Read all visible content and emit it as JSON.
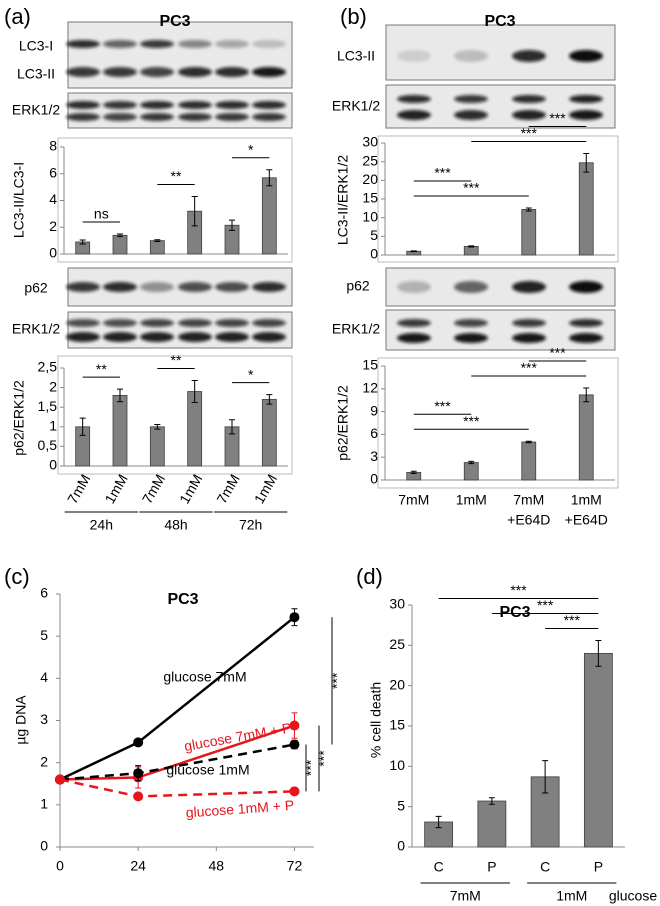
{
  "figure": {
    "panel_labels": [
      "(a)",
      "(b)",
      "(c)",
      "(d)"
    ],
    "blot_labels": {
      "a": [
        "LC3-I",
        "LC3-II",
        "ERK1/2",
        "p62",
        "ERK1/2"
      ],
      "b": [
        "LC3-II",
        "ERK1/2",
        "p62",
        "ERK1/2"
      ]
    }
  },
  "chart_data": [
    {
      "type": "bar",
      "title": "PC3",
      "y_label": "LC3-II/LC3-I",
      "color": "#808080",
      "values": [
        0.9,
        1.4,
        1.0,
        3.2,
        2.15,
        5.7
      ],
      "errors": [
        0.15,
        0.1,
        0.07,
        1.1,
        0.38,
        0.6
      ],
      "ylim": [
        0,
        8
      ],
      "yticks": [
        0,
        2,
        4,
        6,
        8
      ],
      "annotations": [
        {
          "text": "ns",
          "between": [
            0,
            1
          ]
        },
        {
          "text": "**",
          "between": [
            2,
            3
          ]
        },
        {
          "text": "*",
          "between": [
            4,
            5
          ]
        }
      ]
    },
    {
      "type": "bar",
      "y_label": "p62/ERK1/2",
      "color": "#808080",
      "categories": [
        "7mM",
        "1mM",
        "7mM",
        "1mM",
        "7mM",
        "1mM"
      ],
      "groups": [
        {
          "label": "24h",
          "span": [
            0,
            1
          ]
        },
        {
          "label": "48h",
          "span": [
            2,
            3
          ]
        },
        {
          "label": "72h",
          "span": [
            4,
            5
          ]
        }
      ],
      "values": [
        1.0,
        1.8,
        1.0,
        1.9,
        1.0,
        1.7
      ],
      "errors": [
        0.22,
        0.16,
        0.06,
        0.28,
        0.18,
        0.12
      ],
      "ylim": [
        0,
        2.5
      ],
      "yticks": [
        0,
        {
          "value": 0.5,
          "label": "0,5"
        },
        1,
        {
          "value": 1.5,
          "label": "1,5"
        },
        2,
        {
          "value": 2.5,
          "label": "2,5"
        }
      ],
      "annotations": [
        {
          "text": "**",
          "between": [
            0,
            1
          ]
        },
        {
          "text": "**",
          "between": [
            2,
            3
          ]
        },
        {
          "text": "*",
          "between": [
            4,
            5
          ]
        }
      ]
    },
    {
      "type": "bar",
      "title": "PC3",
      "y_label": "LC3-II/ERK1/2",
      "color": "#808080",
      "values": [
        1.0,
        2.3,
        12.2,
        24.7
      ],
      "errors": [
        0.1,
        0.15,
        0.4,
        2.5
      ],
      "ylim": [
        0,
        30
      ],
      "yticks": [
        0,
        5,
        10,
        15,
        20,
        25,
        30
      ],
      "annotations": [
        {
          "text": "***",
          "between": [
            0,
            2
          ]
        },
        {
          "text": "***",
          "between": [
            0,
            1
          ]
        },
        {
          "text": "***",
          "between": [
            1,
            3
          ]
        },
        {
          "text": "***",
          "between": [
            2,
            3
          ]
        }
      ]
    },
    {
      "type": "bar",
      "y_label": "p62/ERK1/2",
      "color": "#808080",
      "categories": [
        "7mM",
        "1mM",
        "7mM",
        "1mM"
      ],
      "category_sublabels": [
        null,
        null,
        "+E64D",
        "+E64D"
      ],
      "values": [
        1.0,
        2.3,
        5.0,
        11.2
      ],
      "errors": [
        0.15,
        0.15,
        0.1,
        0.9
      ],
      "ylim": [
        0,
        15
      ],
      "yticks": [
        0,
        3,
        6,
        9,
        12,
        15
      ],
      "annotations": [
        {
          "text": "***",
          "between": [
            0,
            2
          ]
        },
        {
          "text": "***",
          "between": [
            0,
            1
          ]
        },
        {
          "text": "***",
          "between": [
            1,
            3
          ]
        },
        {
          "text": "***",
          "between": [
            2,
            3
          ]
        }
      ]
    },
    {
      "type": "line",
      "title": "PC3",
      "y_label": "µg DNA",
      "x": [
        0,
        24,
        72
      ],
      "xlim": [
        0,
        78
      ],
      "xticks": [
        0,
        24,
        48,
        72
      ],
      "ylim": [
        0,
        6
      ],
      "yticks": [
        0,
        1,
        2,
        3,
        4,
        5,
        6
      ],
      "series": [
        {
          "name": "glucose 7mM",
          "color": "#000000",
          "line_style": "solid",
          "values": [
            1.6,
            2.48,
            5.45
          ],
          "errors": [
            null,
            0.07,
            0.2
          ]
        },
        {
          "name": "glucose 7mM + P",
          "color": "#e8141c",
          "line_style": "solid",
          "values": [
            1.6,
            1.65,
            2.88
          ],
          "errors": [
            null,
            0.25,
            0.3
          ]
        },
        {
          "name": "glucose 1mM",
          "color": "#000000",
          "line_style": "dashed",
          "values": [
            1.6,
            1.75,
            2.43
          ],
          "errors": [
            null,
            0.18,
            0.1
          ]
        },
        {
          "name": "glucose 1mM + P",
          "color": "#e8141c",
          "line_style": "dashed",
          "values": [
            1.6,
            1.2,
            1.32
          ],
          "errors": [
            null,
            0.05,
            0.06
          ]
        }
      ],
      "annotations": [
        {
          "text": "***",
          "between": [
            2,
            3
          ]
        },
        {
          "text": "***",
          "between": [
            1,
            3
          ]
        },
        {
          "text": "***",
          "between": [
            0,
            2
          ]
        }
      ]
    },
    {
      "type": "bar",
      "title": "PC3",
      "y_label": "% cell death",
      "color": "#808080",
      "categories": [
        "C",
        "P",
        "C",
        "P"
      ],
      "groups": [
        {
          "label": "7mM",
          "span": [
            0,
            1
          ]
        },
        {
          "label": "1mM",
          "span": [
            2,
            3
          ]
        }
      ],
      "group_suffix": "glucose",
      "values": [
        3.1,
        5.7,
        8.7,
        24.0
      ],
      "errors": [
        0.7,
        0.4,
        2.0,
        1.6
      ],
      "ylim": [
        0,
        30
      ],
      "yticks": [
        0,
        5,
        10,
        15,
        20,
        25,
        30
      ],
      "annotations": [
        {
          "text": "***",
          "between": [
            2,
            3
          ]
        },
        {
          "text": "***",
          "between": [
            1,
            3
          ]
        },
        {
          "text": "***",
          "between": [
            0,
            3
          ]
        }
      ]
    }
  ]
}
